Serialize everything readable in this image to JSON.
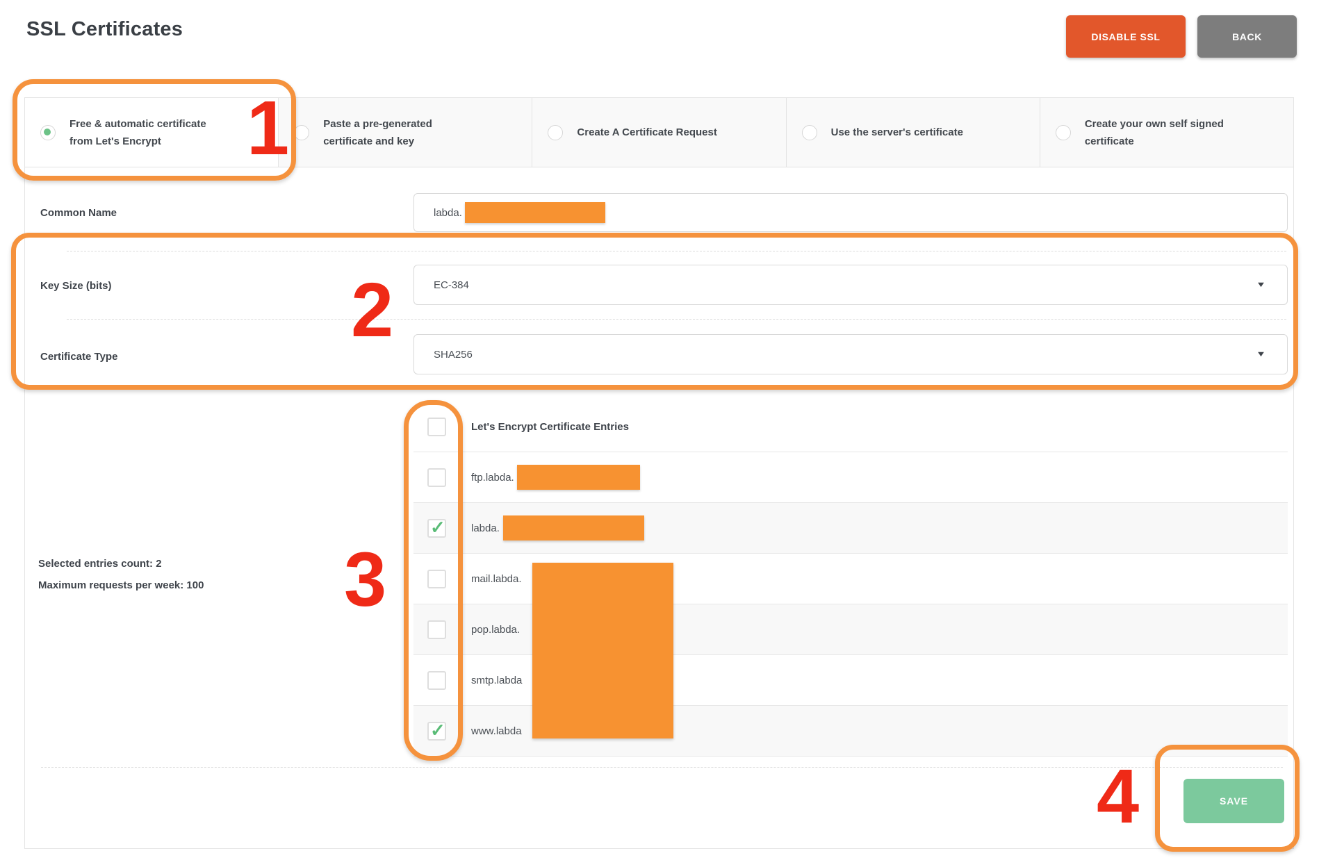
{
  "page": {
    "title": "SSL Certificates"
  },
  "toolbar": {
    "disable_ssl_label": "DISABLE SSL",
    "back_label": "BACK"
  },
  "options": [
    {
      "label": "Free & automatic certificate from Let's Encrypt",
      "selected": true
    },
    {
      "label": "Paste a pre-generated certificate and key",
      "selected": false
    },
    {
      "label": "Create A Certificate Request",
      "selected": false
    },
    {
      "label": "Use the server's certificate",
      "selected": false
    },
    {
      "label": "Create your own self signed certificate",
      "selected": false
    }
  ],
  "form": {
    "common_name_label": "Common Name",
    "common_name_value": "labda.",
    "key_size_label": "Key Size (bits)",
    "key_size_value": "EC-384",
    "certificate_type_label": "Certificate Type",
    "certificate_type_value": "SHA256",
    "dropdown_icon": "▼"
  },
  "entries": {
    "header_label": "Let's Encrypt Certificate Entries",
    "select_all_checked": false,
    "summary": {
      "selected_count_text": "Selected entries count: 2",
      "max_requests_text": "Maximum requests per week: 100"
    },
    "rows": [
      {
        "label": "ftp.labda.",
        "checked": false,
        "redacted": true
      },
      {
        "label": "labda.",
        "checked": true,
        "redacted": true
      },
      {
        "label": "mail.labda.",
        "checked": false,
        "redacted": true
      },
      {
        "label": "pop.labda.",
        "checked": false,
        "redacted": true
      },
      {
        "label": "smtp.labda",
        "checked": false,
        "redacted": true
      },
      {
        "label": "www.labda",
        "checked": true,
        "redacted": true
      }
    ]
  },
  "footer": {
    "save_label": "SAVE"
  },
  "annotations": {
    "steps": [
      "1",
      "2",
      "3",
      "4"
    ]
  },
  "colors": {
    "annotation_orange": "#f5923d",
    "annotation_red": "#ef2a17",
    "redaction_orange": "#f79231",
    "disable_ssl_button": "#e2572b",
    "back_button": "#7d7d7d",
    "save_button": "#7cc99d",
    "selected_radio_green": "#6cc287",
    "checkmark_green": "#5abc77"
  }
}
